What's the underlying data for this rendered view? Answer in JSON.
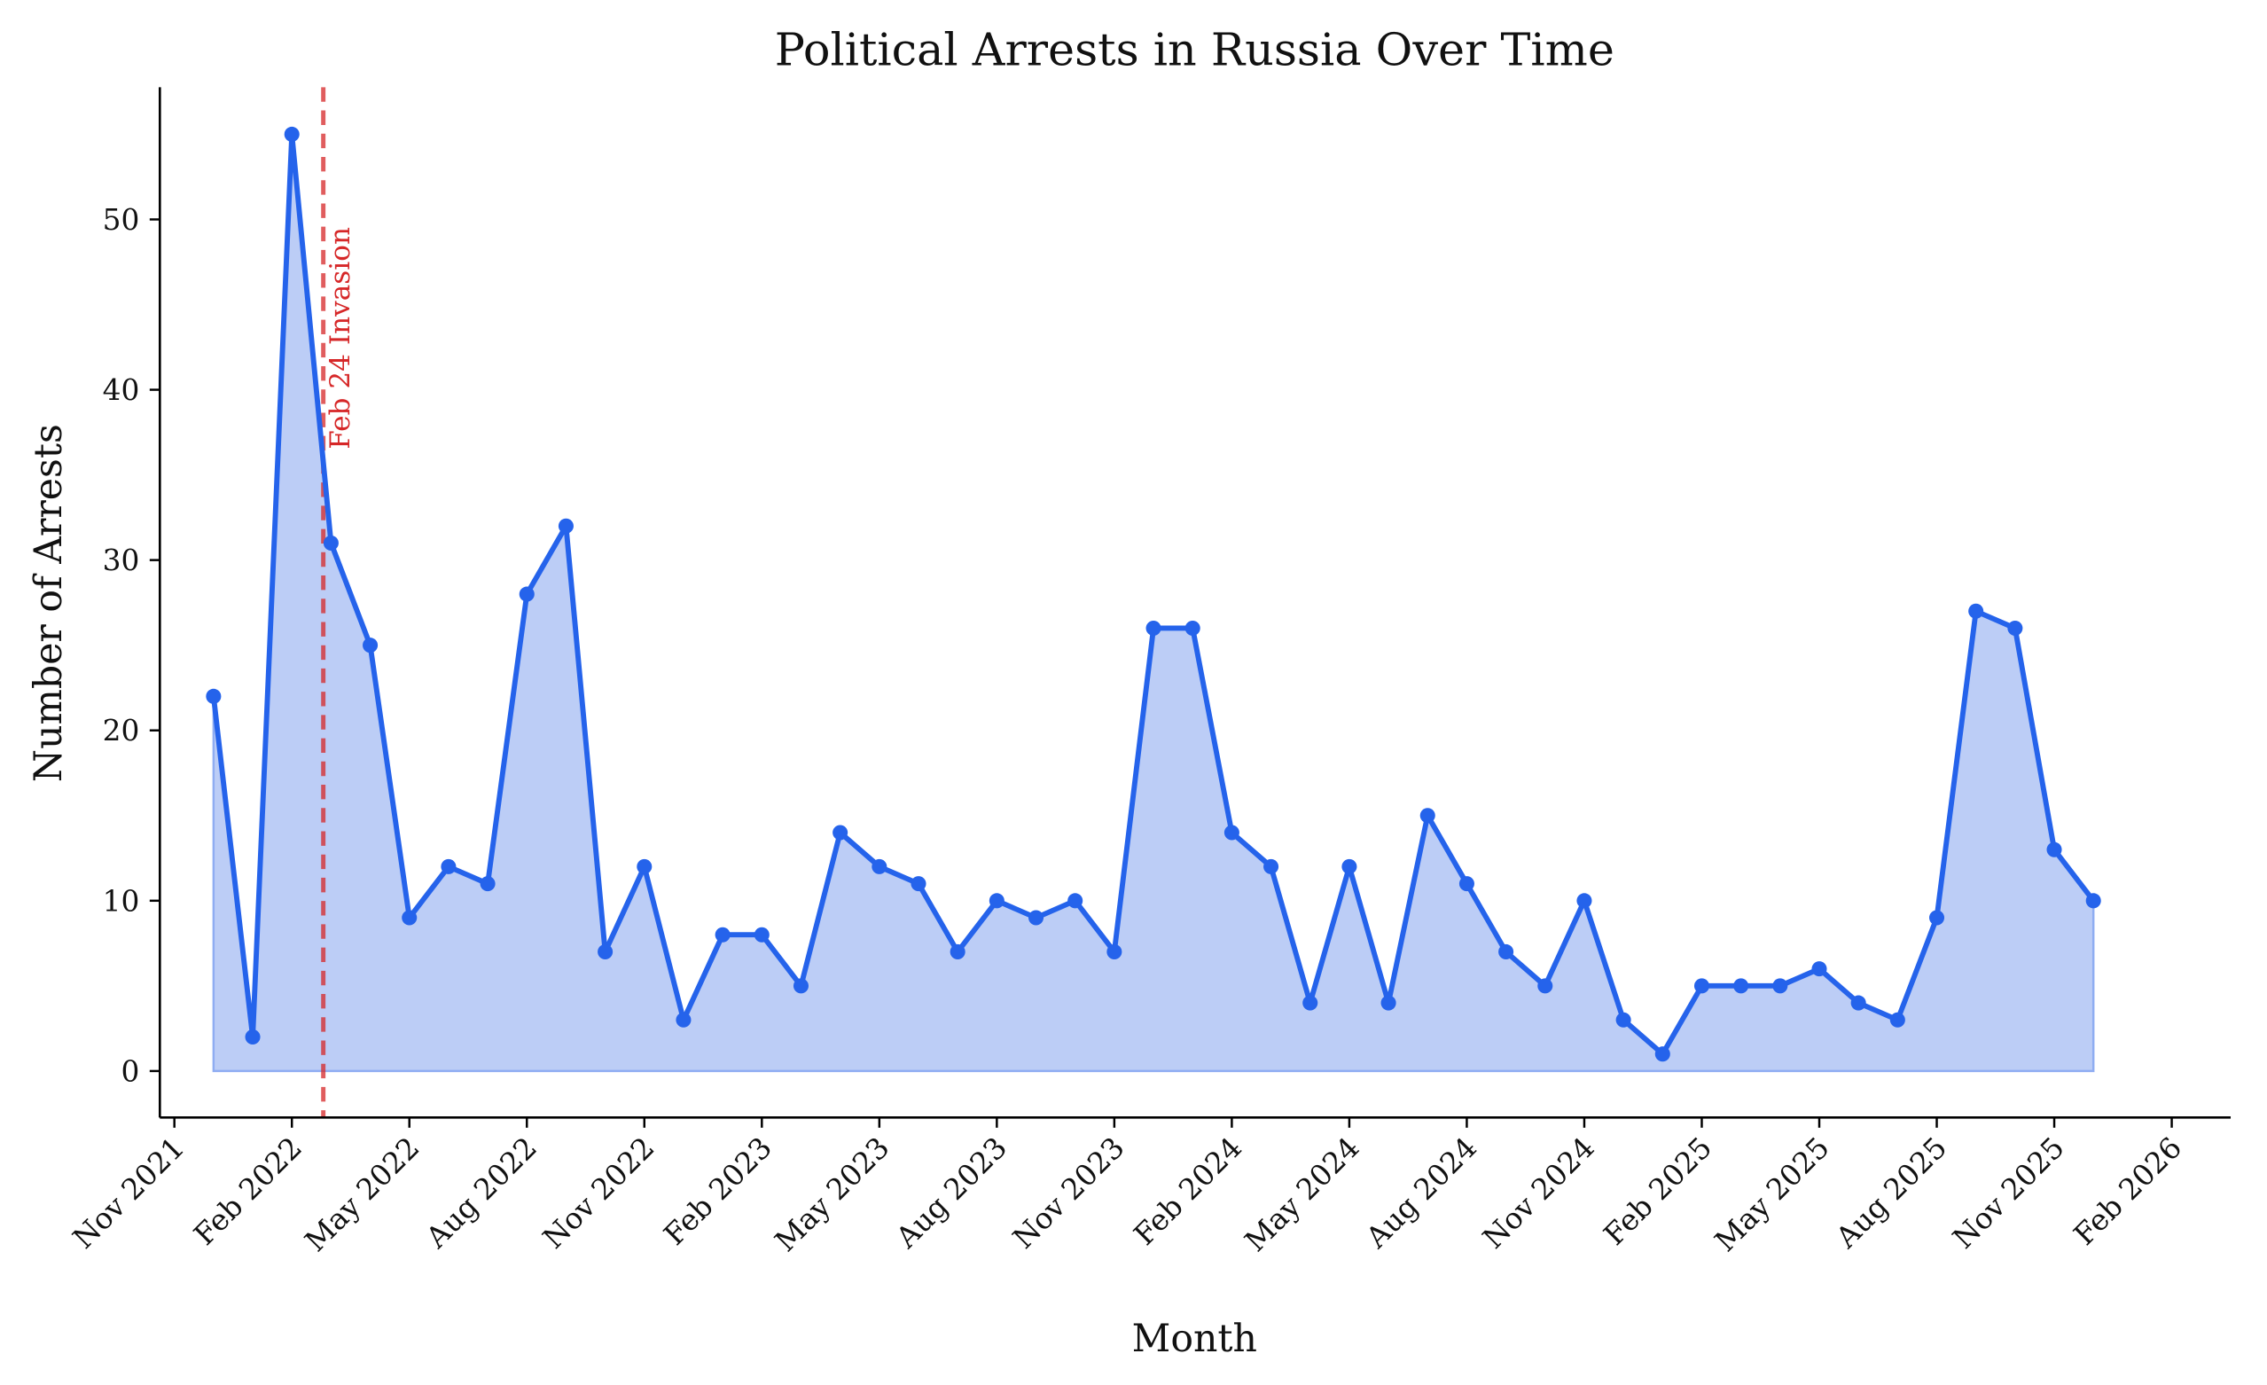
{
  "chart_data": {
    "type": "area",
    "title": "Political Arrests in Russia Over Time",
    "xlabel": "Month",
    "ylabel": "Number of Arrests",
    "x": [
      "Dec 2021",
      "Jan 2022",
      "Feb 2022",
      "Mar 2022",
      "Apr 2022",
      "May 2022",
      "Jun 2022",
      "Jul 2022",
      "Aug 2022",
      "Sep 2022",
      "Oct 2022",
      "Nov 2022",
      "Dec 2022",
      "Jan 2023",
      "Feb 2023",
      "Mar 2023",
      "Apr 2023",
      "May 2023",
      "Jun 2023",
      "Jul 2023",
      "Aug 2023",
      "Sep 2023",
      "Oct 2023",
      "Nov 2023",
      "Dec 2023",
      "Jan 2024",
      "Feb 2024",
      "Mar 2024",
      "Apr 2024",
      "May 2024",
      "Jun 2024",
      "Jul 2024",
      "Aug 2024",
      "Sep 2024",
      "Oct 2024",
      "Nov 2024",
      "Dec 2024",
      "Jan 2025",
      "Feb 2025",
      "Mar 2025",
      "Apr 2025",
      "May 2025",
      "Jun 2025",
      "Jul 2025",
      "Aug 2025",
      "Sep 2025",
      "Oct 2025",
      "Nov 2025",
      "Dec 2025"
    ],
    "series": [
      {
        "name": "Political arrests",
        "color": "#2563eb",
        "fill": "#bccdf6",
        "values": [
          22,
          2,
          55,
          31,
          25,
          9,
          12,
          11,
          28,
          32,
          7,
          12,
          3,
          8,
          8,
          5,
          14,
          12,
          11,
          7,
          10,
          9,
          10,
          7,
          26,
          26,
          14,
          12,
          4,
          12,
          4,
          15,
          11,
          7,
          5,
          10,
          3,
          1,
          5,
          5,
          5,
          6,
          4,
          3,
          9,
          27,
          26,
          13,
          10
        ]
      }
    ],
    "xticks": [
      "Nov 2021",
      "Feb 2022",
      "May 2022",
      "Aug 2022",
      "Nov 2022",
      "Feb 2023",
      "May 2023",
      "Aug 2023",
      "Nov 2023",
      "Feb 2024",
      "May 2024",
      "Aug 2024",
      "Nov 2024",
      "Feb 2025",
      "May 2025",
      "Aug 2025",
      "Nov 2025",
      "Feb 2026"
    ],
    "yticks": [
      0,
      10,
      20,
      30,
      40,
      50
    ],
    "ylim": [
      -2.8,
      58
    ],
    "grid": false,
    "legend": null,
    "annotations": [
      {
        "type": "vline",
        "x": "2022-02-24",
        "label": "Feb 24 Invasion",
        "color": "#d62728",
        "style": "dashed"
      }
    ]
  }
}
